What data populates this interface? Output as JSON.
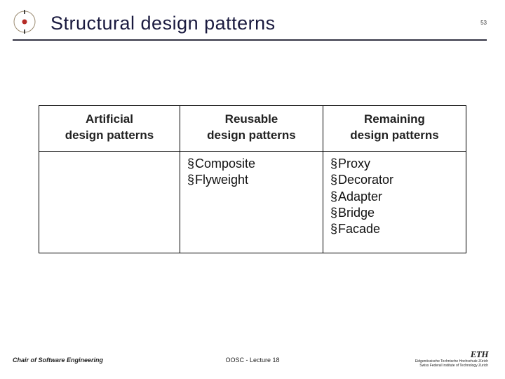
{
  "header": {
    "title": "Structural design patterns",
    "page_number": "53"
  },
  "table": {
    "columns": [
      {
        "line1": "Artificial",
        "line2": "design patterns"
      },
      {
        "line1": "Reusable",
        "line2": "design patterns"
      },
      {
        "line1": "Remaining",
        "line2": "design patterns"
      }
    ],
    "rows": [
      {
        "artificial": [],
        "reusable": [
          "Composite",
          "Flyweight"
        ],
        "remaining": [
          "Proxy",
          "Decorator",
          "Adapter",
          "Bridge",
          "Facade"
        ]
      }
    ]
  },
  "footer": {
    "left": "Chair of Software Engineering",
    "center": "OOSC - Lecture 18",
    "right_main": "ETH",
    "right_sub1": "Eidgenössische Technische Hochschule Zürich",
    "right_sub2": "Swiss Federal Institute of Technology Zurich"
  },
  "colors": {
    "title_color": "#1a1a3f",
    "rule_color": "#333344",
    "logo_outer": "#9a8a70",
    "logo_inner": "#b52b27"
  }
}
